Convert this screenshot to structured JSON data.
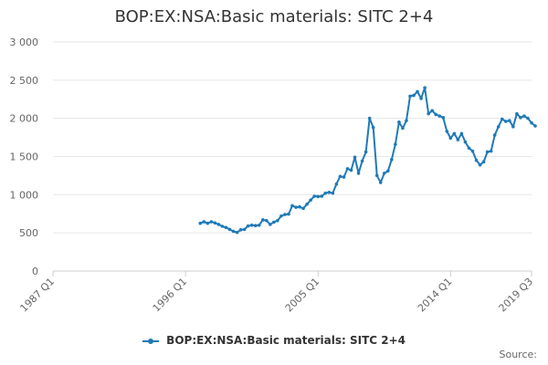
{
  "chart_data": {
    "type": "line",
    "title": "BOP:EX:NSA:Basic materials: SITC 2+4",
    "xlabel": "",
    "ylabel": "",
    "ylim": [
      0,
      3000
    ],
    "yticks": [
      0,
      500,
      1000,
      1500,
      2000,
      2500,
      3000
    ],
    "ytick_labels": [
      "0",
      "500",
      "1 000",
      "1 500",
      "2 000",
      "2 500",
      "3 000"
    ],
    "x_start": "1987 Q1",
    "x_end": "2019 Q3",
    "xticks": [
      {
        "index": 0,
        "label": "1987 Q1"
      },
      {
        "index": 36,
        "label": "1996 Q1"
      },
      {
        "index": 72,
        "label": "2005 Q1"
      },
      {
        "index": 108,
        "label": "2014 Q1"
      },
      {
        "index": 130,
        "label": "2019 Q3"
      }
    ],
    "series": [
      {
        "name": "BOP:EX:NSA:Basic materials: SITC 2+4",
        "color": "#1f7ab8",
        "start_index": 40,
        "values": [
          625,
          645,
          625,
          645,
          630,
          610,
          585,
          570,
          545,
          520,
          505,
          540,
          545,
          590,
          600,
          595,
          600,
          670,
          660,
          610,
          640,
          660,
          720,
          740,
          745,
          855,
          835,
          840,
          820,
          875,
          930,
          980,
          975,
          980,
          1020,
          1030,
          1020,
          1140,
          1240,
          1230,
          1340,
          1320,
          1490,
          1280,
          1440,
          1560,
          2000,
          1880,
          1250,
          1160,
          1280,
          1310,
          1460,
          1660,
          1950,
          1870,
          1970,
          2290,
          2300,
          2350,
          2260,
          2400,
          2060,
          2100,
          2050,
          2030,
          2010,
          1830,
          1740,
          1800,
          1720,
          1800,
          1690,
          1610,
          1570,
          1450,
          1390,
          1430,
          1560,
          1570,
          1780,
          1890,
          1990,
          1960,
          1970,
          1890,
          2060,
          2010,
          2030,
          2000,
          1940,
          1900
        ]
      }
    ]
  },
  "legend": {
    "label": "BOP:EX:NSA:Basic materials: SITC 2+4"
  },
  "source": {
    "label": "Source:"
  }
}
